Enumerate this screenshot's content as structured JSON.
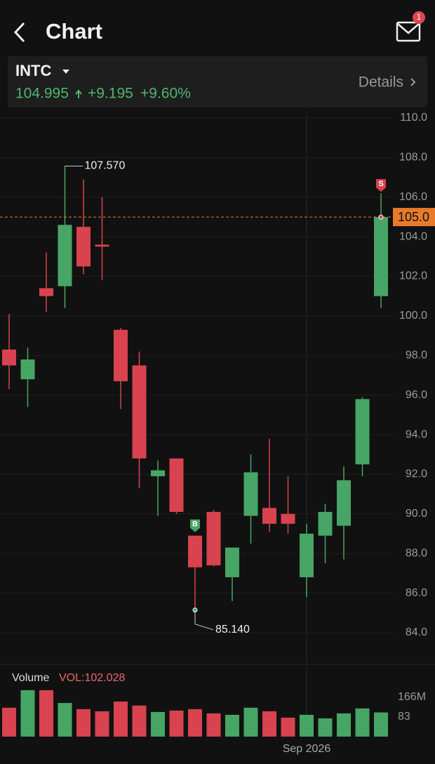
{
  "header": {
    "title": "Chart",
    "badge": "1",
    "symbol": "INTC",
    "price": "104.995",
    "change": "+9.195",
    "change_pct": "+9.60%",
    "details": "Details"
  },
  "chart_data": {
    "type": "candlestick",
    "categories": [
      null,
      null,
      null,
      null,
      null,
      null,
      null,
      null,
      null,
      null,
      null,
      null,
      null,
      null,
      null,
      null,
      "Sep 2026",
      null,
      null,
      null,
      null
    ],
    "open": [
      98.3,
      96.8,
      101.4,
      101.5,
      104.5,
      103.6,
      99.3,
      97.5,
      91.9,
      92.8,
      88.9,
      90.1,
      86.8,
      89.9,
      90.3,
      90.0,
      86.8,
      88.9,
      89.4,
      92.5,
      101.0
    ],
    "high": [
      100.1,
      98.4,
      103.2,
      107.57,
      106.9,
      106.0,
      99.4,
      98.2,
      92.7,
      92.8,
      88.9,
      90.2,
      88.3,
      93.0,
      93.8,
      91.9,
      89.5,
      90.5,
      92.4,
      95.9,
      106.2
    ],
    "low": [
      96.3,
      95.4,
      100.2,
      100.4,
      102.1,
      101.8,
      95.3,
      91.3,
      89.9,
      90.0,
      85.14,
      87.35,
      85.6,
      88.5,
      89.1,
      89.0,
      85.8,
      87.5,
      87.7,
      91.9,
      100.4
    ],
    "close": [
      97.5,
      97.8,
      101.0,
      104.6,
      102.5,
      103.5,
      96.7,
      92.8,
      92.2,
      90.1,
      87.3,
      87.4,
      88.3,
      92.1,
      89.5,
      89.5,
      89.0,
      90.1,
      91.7,
      95.8,
      104.995
    ],
    "up_color": "#47a565",
    "down_color": "#d8434f",
    "signals": [
      null,
      null,
      null,
      null,
      null,
      null,
      null,
      null,
      null,
      null,
      "B",
      null,
      null,
      null,
      null,
      null,
      null,
      null,
      null,
      null,
      "S"
    ],
    "annotations": [
      {
        "label": "107.570"
      },
      {
        "label": "85.140"
      }
    ],
    "price_line": {
      "value": 104.995,
      "label": "105.0"
    },
    "ylim": [
      83.0,
      110.0
    ],
    "yticks": [
      {
        "value": 84,
        "label": "84.0"
      },
      {
        "value": 86,
        "label": "86.0"
      },
      {
        "value": 88,
        "label": "88.0"
      },
      {
        "value": 90,
        "label": "90.0"
      },
      {
        "value": 92,
        "label": "92.0"
      },
      {
        "value": 94,
        "label": "94.0"
      },
      {
        "value": 96,
        "label": "96.0"
      },
      {
        "value": 98,
        "label": "98.0"
      },
      {
        "value": 100,
        "label": "100.0"
      },
      {
        "value": 102,
        "label": "102.0"
      },
      {
        "value": 104,
        "label": "104.0"
      },
      {
        "value": 106,
        "label": "106.0"
      },
      {
        "value": 108,
        "label": "108.0"
      },
      {
        "value": 110,
        "label": "110.0"
      }
    ],
    "grid": true,
    "volume_title": "Volume",
    "volume_label": "VOL:102.028",
    "volumes": [
      122,
      196,
      196,
      142,
      116,
      107,
      148,
      131,
      104,
      110,
      116,
      98,
      92,
      122,
      107,
      80,
      92,
      77,
      98,
      119,
      102.028
    ],
    "vol_ylim": [
      0,
      166
    ],
    "vol_yticks": [
      {
        "value": 166,
        "label": "166M"
      },
      83
    ]
  }
}
